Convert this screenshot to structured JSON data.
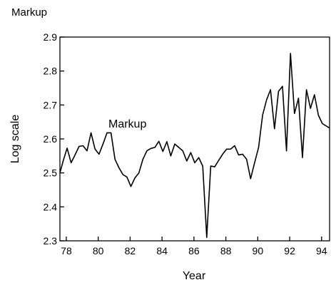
{
  "chart_data": {
    "type": "line",
    "title": "Markup",
    "xlabel": "Year",
    "ylabel": "Log scale",
    "annotation": "Markup",
    "xlim": [
      77.6,
      94.5
    ],
    "ylim": [
      2.3,
      2.9
    ],
    "grid": false,
    "legend": "none",
    "line_color": "#000000",
    "x_ticks": [
      78,
      80,
      82,
      84,
      86,
      88,
      90,
      92,
      94
    ],
    "x_tick_labels": [
      "78",
      "80",
      "82",
      "84",
      "86",
      "88",
      "90",
      "92",
      "94"
    ],
    "y_ticks": [
      2.3,
      2.4,
      2.5,
      2.6,
      2.7,
      2.8,
      2.9
    ],
    "y_tick_labels": [
      "2.3",
      "2.4",
      "2.5",
      "2.6",
      "2.7",
      "2.8",
      "2.9"
    ],
    "series": [
      {
        "x": [
          77.6,
          77.8,
          78.05,
          78.3,
          78.55,
          78.8,
          79.05,
          79.3,
          79.55,
          79.8,
          80.05,
          80.3,
          80.55,
          80.8,
          81.05,
          81.3,
          81.55,
          81.8,
          82.05,
          82.3,
          82.55,
          82.8,
          83.05,
          83.3,
          83.55,
          83.8,
          84.05,
          84.3,
          84.55,
          84.8,
          85.05,
          85.3,
          85.55,
          85.8,
          86.05,
          86.3,
          86.55,
          86.8,
          87.05,
          87.3,
          87.55,
          87.8,
          88.05,
          88.3,
          88.55,
          88.8,
          89.05,
          89.3,
          89.55,
          89.8,
          90.05,
          90.3,
          90.55,
          90.8,
          91.05,
          91.3,
          91.55,
          91.8,
          92.05,
          92.3,
          92.55,
          92.8,
          93.05,
          93.3,
          93.55,
          93.8,
          94.05,
          94.3,
          94.5
        ],
        "y": [
          2.5,
          2.535,
          2.573,
          2.53,
          2.553,
          2.578,
          2.58,
          2.565,
          2.618,
          2.57,
          2.555,
          2.585,
          2.618,
          2.618,
          2.54,
          2.515,
          2.495,
          2.488,
          2.46,
          2.485,
          2.5,
          2.54,
          2.565,
          2.572,
          2.575,
          2.593,
          2.563,
          2.592,
          2.55,
          2.585,
          2.575,
          2.565,
          2.535,
          2.56,
          2.53,
          2.545,
          2.52,
          2.31,
          2.52,
          2.518,
          2.537,
          2.555,
          2.57,
          2.57,
          2.58,
          2.553,
          2.555,
          2.54,
          2.483,
          2.53,
          2.575,
          2.67,
          2.715,
          2.745,
          2.63,
          2.74,
          2.755,
          2.565,
          2.852,
          2.675,
          2.72,
          2.545,
          2.745,
          2.69,
          2.73,
          2.67,
          2.645,
          2.638,
          2.632
        ]
      }
    ]
  }
}
